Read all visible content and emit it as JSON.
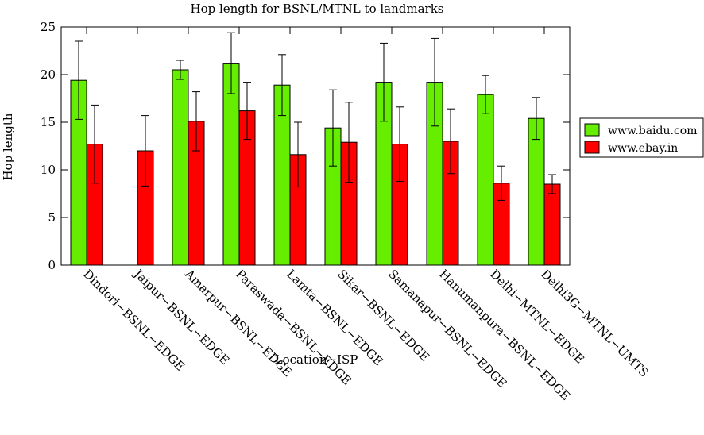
{
  "chart_data": {
    "type": "bar",
    "title": "Hop length for BSNL/MTNL to landmarks",
    "xlabel": "Location−ISP",
    "ylabel": "Hop length",
    "ylim": [
      0,
      25
    ],
    "yticks": [
      0,
      5,
      10,
      15,
      20,
      25
    ],
    "grid": false,
    "legend_position": "right",
    "categories": [
      "Dindori−BSNL−EDGE",
      "Jaipur−BSNL−EDGE",
      "Amarpur−BSNL−EDGE",
      "Paraswada−BSNL−EDGE",
      "Lamta−BSNL−EDGE",
      "Sikar−BSNL−EDGE",
      "Samanapur−BSNL−EDGE",
      "Hanumanpura−BSNL−EDGE",
      "Delhi−MTNL−EDGE",
      "Delhi3G−MTNL−UMTS"
    ],
    "series": [
      {
        "name": "www.baidu.com",
        "color": "#66ee00",
        "values": [
          19.4,
          null,
          20.5,
          21.2,
          18.9,
          14.4,
          19.2,
          19.2,
          17.9,
          15.4
        ],
        "error": [
          4.1,
          null,
          1.0,
          3.2,
          3.2,
          4.0,
          4.1,
          4.6,
          2.0,
          2.2
        ]
      },
      {
        "name": "www.ebay.in",
        "color": "#ff0000",
        "values": [
          12.7,
          12.0,
          15.1,
          16.2,
          11.6,
          12.9,
          12.7,
          13.0,
          8.6,
          8.5
        ],
        "error": [
          4.1,
          3.7,
          3.1,
          3.0,
          3.4,
          4.2,
          3.9,
          3.4,
          1.8,
          1.0
        ]
      }
    ]
  }
}
